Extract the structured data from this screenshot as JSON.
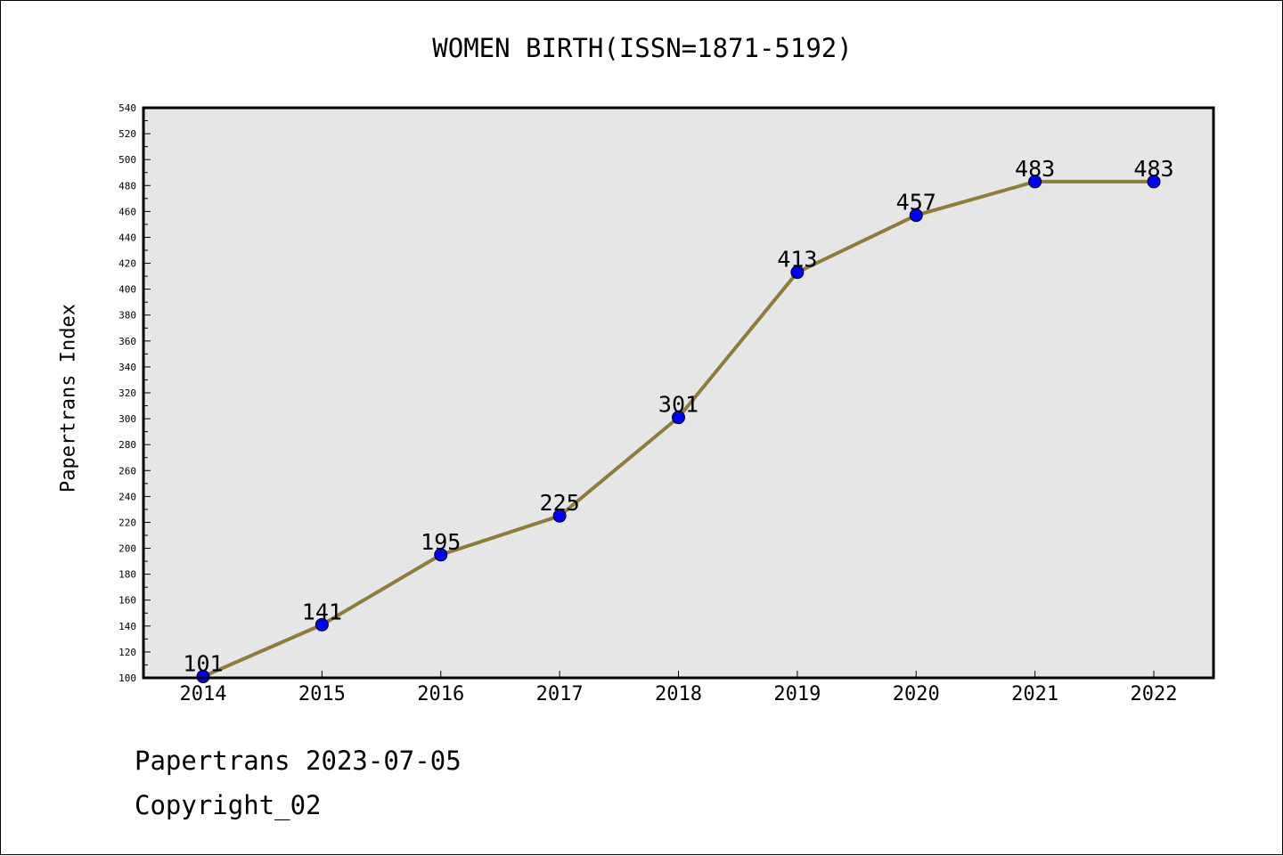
{
  "chart_data": {
    "type": "line",
    "title": "WOMEN BIRTH(ISSN=1871-5192)",
    "xlabel": "",
    "ylabel": "Papertrans Index",
    "categories": [
      "2014",
      "2015",
      "2016",
      "2017",
      "2018",
      "2019",
      "2020",
      "2021",
      "2022"
    ],
    "series": [
      {
        "values": [
          101,
          141,
          195,
          225,
          301,
          413,
          457,
          483,
          483
        ]
      }
    ],
    "data_labels": [
      "101",
      "141",
      "195",
      "225",
      "301",
      "413",
      "457",
      "483",
      "483"
    ],
    "ylim": [
      100,
      540
    ],
    "yticks": [
      100,
      120,
      140,
      160,
      180,
      200,
      220,
      240,
      260,
      280,
      300,
      320,
      340,
      360,
      380,
      400,
      420,
      440,
      460,
      480,
      500,
      520,
      540
    ],
    "grid": false,
    "legend": "none",
    "colors": {
      "line": "#8e7d3a",
      "marker": "#0000ff",
      "plot_bg": "#e6e6e6"
    }
  },
  "footer": {
    "date": "Papertrans 2023-07-05",
    "copyright": "Copyright_02"
  }
}
